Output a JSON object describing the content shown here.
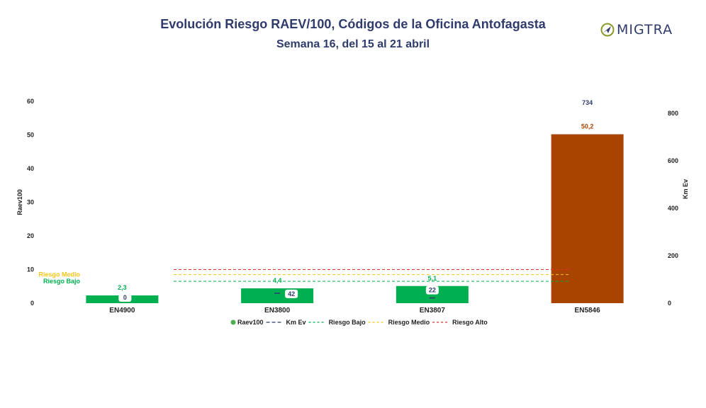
{
  "header": {
    "title": "Evolución Riesgo RAEV/100, Códigos de la Oficina Antofagasta",
    "subtitle": "Semana 16, del 15 al 21 abril",
    "logo_text": "MIGTRA"
  },
  "colors": {
    "low": "#00b050",
    "high": "#a84300",
    "medium_line": "#f5c518",
    "high_line": "#e03030",
    "km_line": "#2f3b6b",
    "title": "#2f3b6b"
  },
  "chart_data": {
    "type": "bar",
    "categories": [
      "EN4900",
      "EN3800",
      "EN3807",
      "EN5846"
    ],
    "series": [
      {
        "name": "Raev100",
        "axis": "left",
        "values": [
          2.3,
          4.4,
          5.1,
          50.2
        ],
        "labels": [
          "2,3",
          "4,4",
          "5,1",
          "50,2"
        ],
        "colors": [
          "#00b050",
          "#00b050",
          "#00b050",
          "#a84300"
        ]
      },
      {
        "name": "Km Ev",
        "axis": "right",
        "values": [
          0,
          42,
          22,
          734
        ],
        "labels": [
          "0",
          "42",
          "22",
          "734"
        ]
      }
    ],
    "thresholds": [
      {
        "name": "Riesgo Bajo",
        "value": 6.5,
        "color": "#00b050",
        "label": "Riesgo Bajo"
      },
      {
        "name": "Riesgo Medio",
        "value": 8.5,
        "color": "#f5c518",
        "label": "Riesgo Medio"
      },
      {
        "name": "Riesgo Alto",
        "value": 10,
        "color": "#e03030"
      }
    ],
    "ylabel": "Raev100",
    "y2label": "Km Ev",
    "ylim": [
      0,
      60
    ],
    "yticks": [
      0,
      10,
      20,
      30,
      40,
      50,
      60
    ],
    "y2lim": [
      0,
      800
    ],
    "y2ticks": [
      0,
      200,
      400,
      600,
      800
    ],
    "legend": {
      "position": "bottom",
      "items": [
        "Raev100",
        "Km Ev",
        "Riesgo Bajo",
        "Riesgo Medio",
        "Riesgo Alto"
      ]
    }
  }
}
